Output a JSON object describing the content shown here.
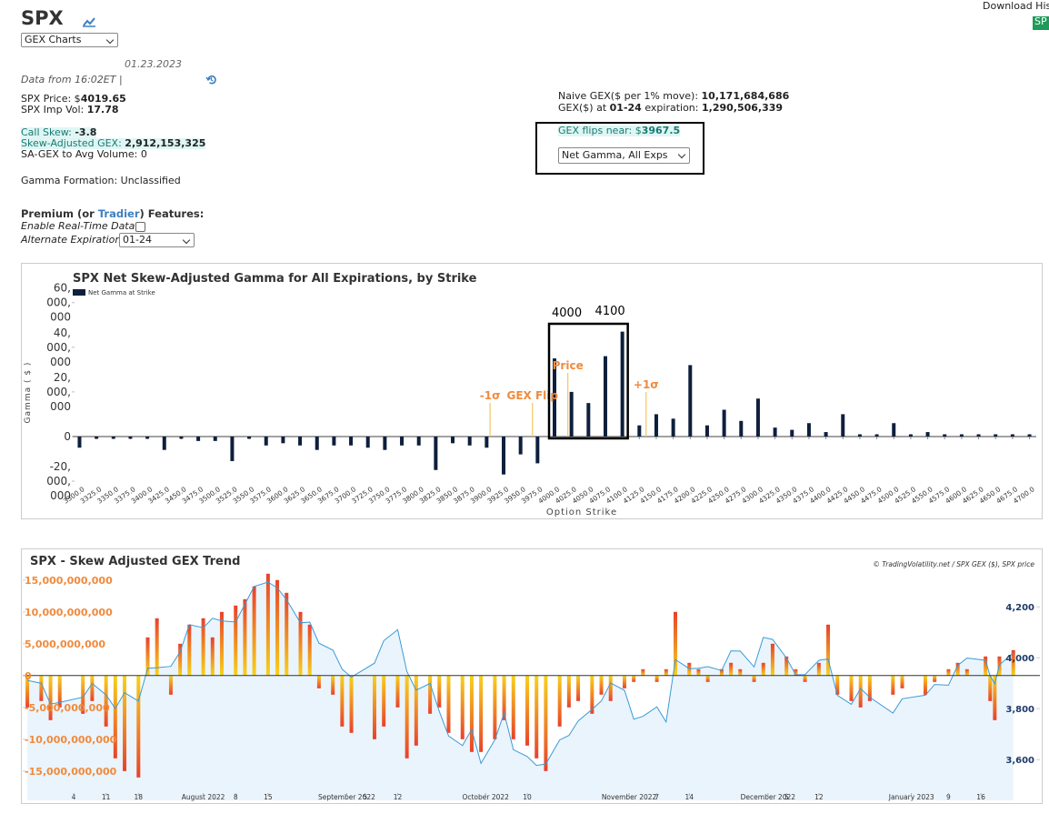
{
  "header": {
    "symbol": "SPX",
    "chart_select": "GEX Charts",
    "date": "01.23.2023",
    "data_from": "Data from 16:02ET |",
    "download": "Download Histo",
    "download_button": "SP"
  },
  "stats": {
    "price_label": "SPX Price: $",
    "price": "4019.65",
    "iv_label": "SPX Imp Vol: ",
    "iv": "17.78",
    "call_skew_label": "Call Skew: ",
    "call_skew": "-3.8",
    "sagex_label": "Skew-Adjusted GEX: ",
    "sagex": "2,912,153,325",
    "sagex_vol": "SA-GEX to Avg Volume: 0",
    "formation": "Gamma Formation: Unclassified",
    "naive_label": "Naive GEX($ per 1% move): ",
    "naive": "10,171,684,686",
    "exp_label_1": "GEX($) at ",
    "exp_date": "01-24",
    "exp_label_2": " expiration: ",
    "exp_gex": "1,290,506,339",
    "flip_label": "GEX flips near: $",
    "flip": "3967.5",
    "gamma_select": "Net Gamma, All Exps"
  },
  "premium": {
    "title_1": "Premium (or ",
    "link": "Tradier",
    "title_2": ") Features:",
    "realtime": "Enable Real-Time Data",
    "alt_exp": "Alternate Expiration",
    "alt_exp_select": "01-24"
  },
  "chart_data": [
    {
      "type": "bar",
      "title": "SPX Net Skew-Adjusted Gamma for All Expirations, by Strike",
      "xlabel": "Option Strike",
      "ylabel": "Gamma ( $ )",
      "x": [
        3300,
        3325,
        3350,
        3375,
        3400,
        3425,
        3450,
        3475,
        3500,
        3525,
        3550,
        3575,
        3600,
        3625,
        3650,
        3675,
        3700,
        3725,
        3750,
        3775,
        3800,
        3825,
        3850,
        3875,
        3900,
        3925,
        3950,
        3975,
        4000,
        4025,
        4050,
        4075,
        4100,
        4125,
        4150,
        4175,
        4200,
        4225,
        4250,
        4275,
        4300,
        4325,
        4350,
        4375,
        4400,
        4425,
        4450,
        4475,
        4500,
        4525,
        4550,
        4575,
        4600,
        4625,
        4650,
        4675,
        4700
      ],
      "series": [
        {
          "name": "Net Gamma at Strike",
          "color": "#0e1f3d",
          "values": [
            -5000000.0,
            -1000000.0,
            -1000000.0,
            -1000000.0,
            -1000000.0,
            -6000000.0,
            -1000000.0,
            -2000000.0,
            -2000000.0,
            -11000000.0,
            -1000000.0,
            -4000000.0,
            -3000000.0,
            -4000000.0,
            -6000000.0,
            -4000000.0,
            -4000000.0,
            -5000000.0,
            -6000000.0,
            -4000000.0,
            -4000000.0,
            -15000000.0,
            -3000000.0,
            -4000000.0,
            -5000000.0,
            -17000000.0,
            -8000000.0,
            -12000000.0,
            35000000.0,
            20000000.0,
            15000000.0,
            36000000.0,
            47000000.0,
            5000000.0,
            10000000.0,
            8000000.0,
            32000000.0,
            5000000.0,
            12000000.0,
            7000000.0,
            17000000.0,
            4000000.0,
            3000000.0,
            6000000.0,
            2000000.0,
            10000000.0,
            1000000.0,
            1000000.0,
            6000000.0,
            1000000.0,
            2000000.0,
            1000000.0,
            1000000.0,
            1000000.0,
            1000000.0,
            1000000.0,
            1000000.0
          ]
        }
      ],
      "xlim": [
        3290,
        4710
      ],
      "ylim": [
        -26500000,
        66000000
      ],
      "xticks": [
        {
          "value": 3300,
          "label": "3300.0"
        },
        {
          "value": 3325,
          "label": "3325.0"
        },
        {
          "value": 3350,
          "label": "3350.0"
        },
        {
          "value": 3375,
          "label": "3375.0"
        },
        {
          "value": 3400,
          "label": "3400.0"
        },
        {
          "value": 3425,
          "label": "3425.0"
        },
        {
          "value": 3450,
          "label": "3450.0"
        },
        {
          "value": 3475,
          "label": "3475.0"
        },
        {
          "value": 3500,
          "label": "3500.0"
        },
        {
          "value": 3525,
          "label": "3525.0"
        },
        {
          "value": 3550,
          "label": "3550.0"
        },
        {
          "value": 3575,
          "label": "3575.0"
        },
        {
          "value": 3600,
          "label": "3600.0"
        },
        {
          "value": 3625,
          "label": "3625.0"
        },
        {
          "value": 3650,
          "label": "3650.0"
        },
        {
          "value": 3675,
          "label": "3675.0"
        },
        {
          "value": 3700,
          "label": "3700.0"
        },
        {
          "value": 3725,
          "label": "3725.0"
        },
        {
          "value": 3750,
          "label": "3750.0"
        },
        {
          "value": 3775,
          "label": "3775.0"
        },
        {
          "value": 3800,
          "label": "3800.0"
        },
        {
          "value": 3825,
          "label": "3825.0"
        },
        {
          "value": 3850,
          "label": "3850.0"
        },
        {
          "value": 3875,
          "label": "3875.0"
        },
        {
          "value": 3900,
          "label": "3900.0"
        },
        {
          "value": 3925,
          "label": "3925.0"
        },
        {
          "value": 3950,
          "label": "3950.0"
        },
        {
          "value": 3975,
          "label": "3975.0"
        },
        {
          "value": 4000,
          "label": "4000.0"
        },
        {
          "value": 4025,
          "label": "4025.0"
        },
        {
          "value": 4050,
          "label": "4050.0"
        },
        {
          "value": 4075,
          "label": "4075.0"
        },
        {
          "value": 4100,
          "label": "4100.0"
        },
        {
          "value": 4125,
          "label": "4125.0"
        },
        {
          "value": 4150,
          "label": "4150.0"
        },
        {
          "value": 4175,
          "label": "4175.0"
        },
        {
          "value": 4200,
          "label": "4200.0"
        },
        {
          "value": 4225,
          "label": "4225.0"
        },
        {
          "value": 4250,
          "label": "4250.0"
        },
        {
          "value": 4275,
          "label": "4275.0"
        },
        {
          "value": 4300,
          "label": "4300.0"
        },
        {
          "value": 4325,
          "label": "4325.0"
        },
        {
          "value": 4350,
          "label": "4350.0"
        },
        {
          "value": 4375,
          "label": "4375.0"
        },
        {
          "value": 4400,
          "label": "4400.0"
        },
        {
          "value": 4425,
          "label": "4425.0"
        },
        {
          "value": 4450,
          "label": "4450.0"
        },
        {
          "value": 4475,
          "label": "4475.0"
        },
        {
          "value": 4500,
          "label": "4500.0"
        },
        {
          "value": 4525,
          "label": "4525.0"
        },
        {
          "value": 4550,
          "label": "4550.0"
        },
        {
          "value": 4575,
          "label": "4575.0"
        },
        {
          "value": 4600,
          "label": "4600.0"
        },
        {
          "value": 4625,
          "label": "4625.0"
        },
        {
          "value": 4650,
          "label": "4650.0"
        },
        {
          "value": 4675,
          "label": "4675.0"
        },
        {
          "value": 4700,
          "label": "4700.0"
        }
      ],
      "yticks": [
        {
          "value": -20000000,
          "label": "-20,000,000"
        },
        0,
        {
          "value": 20000000,
          "label": "20,000,000"
        },
        {
          "value": 40000000,
          "label": "40,000,000"
        },
        {
          "value": 60000000,
          "label": "60,000,000"
        }
      ],
      "annotations": [
        {
          "label": "-1σ",
          "x": 3905
        },
        {
          "label": "GEX Flip",
          "x": 3967.5
        },
        {
          "label": "Price",
          "x": 4019.65
        },
        {
          "label": "+1σ",
          "x": 4135
        }
      ],
      "annotation_color": "#f08a3c",
      "highlight": {
        "from": 4000,
        "to": 4100
      }
    },
    {
      "type": "bar",
      "title": "SPX - Skew Adjusted GEX Trend",
      "credit": "© TradingVolatility.net / SPX GEX ($), SPX price",
      "x": [
        "2022-06-24",
        "2022-06-27",
        "2022-06-29",
        "2022-07-01",
        "2022-07-06",
        "2022-07-08",
        "2022-07-11",
        "2022-07-13",
        "2022-07-15",
        "2022-07-18",
        "2022-07-20",
        "2022-07-22",
        "2022-07-25",
        "2022-07-27",
        "2022-07-29",
        "2022-08-01",
        "2022-08-03",
        "2022-08-05",
        "2022-08-08",
        "2022-08-10",
        "2022-08-12",
        "2022-08-15",
        "2022-08-17",
        "2022-08-19",
        "2022-08-22",
        "2022-08-24",
        "2022-08-26",
        "2022-08-29",
        "2022-08-31",
        "2022-09-02",
        "2022-09-07",
        "2022-09-09",
        "2022-09-12",
        "2022-09-14",
        "2022-09-16",
        "2022-09-19",
        "2022-09-21",
        "2022-09-23",
        "2022-09-26",
        "2022-09-28",
        "2022-09-30",
        "2022-10-03",
        "2022-10-05",
        "2022-10-07",
        "2022-10-10",
        "2022-10-12",
        "2022-10-14",
        "2022-10-17",
        "2022-10-19",
        "2022-10-21",
        "2022-10-24",
        "2022-10-26",
        "2022-10-28",
        "2022-10-31",
        "2022-11-02",
        "2022-11-04",
        "2022-11-07",
        "2022-11-09",
        "2022-11-11",
        "2022-11-14",
        "2022-11-16",
        "2022-11-18",
        "2022-11-21",
        "2022-11-23",
        "2022-11-25",
        "2022-11-28",
        "2022-11-30",
        "2022-12-02",
        "2022-12-05",
        "2022-12-07",
        "2022-12-09",
        "2022-12-12",
        "2022-12-14",
        "2022-12-16",
        "2022-12-19",
        "2022-12-21",
        "2022-12-23",
        "2022-12-28",
        "2022-12-30",
        "2023-01-04",
        "2023-01-06",
        "2023-01-09",
        "2023-01-11",
        "2023-01-13",
        "2023-01-17",
        "2023-01-18",
        "2023-01-19",
        "2023-01-20",
        "2023-01-23"
      ],
      "series": [
        {
          "color": "#e8412c",
          "gradient_color": "#f7d21c",
          "values": [
            -5000000000.0,
            -4000000000.0,
            -7000000000.0,
            -5000000000.0,
            -6000000000.0,
            -4000000000.0,
            -8000000000.0,
            -13000000000.0,
            -15000000000.0,
            -16000000000.0,
            6000000000.0,
            9000000000.0,
            -3000000000.0,
            5000000000.0,
            8000000000.0,
            9000000000.0,
            6000000000.0,
            10000000000.0,
            11000000000.0,
            12000000000.0,
            14000000000.0,
            16000000000.0,
            15000000000.0,
            13000000000.0,
            10000000000.0,
            8000000000.0,
            -2000000000.0,
            -3000000000.0,
            -8000000000.0,
            -9000000000.0,
            -10000000000.0,
            -8000000000.0,
            -5000000000.0,
            -13000000000.0,
            -11000000000.0,
            -6000000000.0,
            -5000000000.0,
            -9000000000.0,
            -10000000000.0,
            -12000000000.0,
            -12000000000.0,
            -10000000000.0,
            -7000000000.0,
            -10000000000.0,
            -11000000000.0,
            -13000000000.0,
            -15000000000.0,
            -8000000000.0,
            -5000000000.0,
            -4000000000.0,
            -6000000000.0,
            -3000000000.0,
            -4000000000.0,
            -2000000000.0,
            -1000000000.0,
            1000000000.0,
            -1000000000.0,
            1000000000.0,
            10000000000.0,
            2000000000.0,
            1000000000.0,
            -1000000000.0,
            1000000000.0,
            2000000000.0,
            1000000000.0,
            -1000000000.0,
            2000000000.0,
            5000000000.0,
            3000000000.0,
            1000000000.0,
            -1000000000.0,
            2000000000.0,
            8000000000.0,
            -3000000000.0,
            -4000000000.0,
            -5000000000.0,
            -4000000000.0,
            -3000000000.0,
            -2000000000.0,
            -3000000000.0,
            -1000000000.0,
            1000000000.0,
            2000000000.0,
            1000000000.0,
            3000000000.0,
            -4000000000.0,
            -7000000000.0,
            3000000000.0,
            4000000000.0
          ]
        },
        {
          "type": "line",
          "axis": "y2",
          "color": "#3d9ad6",
          "fill": "#eaf4fc",
          "values": [
            3911,
            3900,
            3818,
            3825,
            3845,
            3899,
            3854,
            3801,
            3863,
            3830,
            3959,
            3961,
            3966,
            4023,
            4130,
            4118,
            4155,
            4145,
            4140,
            4210,
            4280,
            4297,
            4274,
            4228,
            4137,
            4140,
            4057,
            4030,
            3955,
            3924,
            3979,
            4067,
            4110,
            3946,
            3873,
            3899,
            3789,
            3693,
            3655,
            3719,
            3585,
            3678,
            3783,
            3639,
            3612,
            3577,
            3583,
            3677,
            3695,
            3752,
            3797,
            3830,
            3901,
            3872,
            3759,
            3770,
            3807,
            3748,
            3993,
            3957,
            3959,
            3965,
            3950,
            4027,
            4026,
            3964,
            4080,
            4072,
            3999,
            3933,
            3934,
            3990,
            3995,
            3852,
            3817,
            3879,
            3845,
            3783,
            3839,
            3853,
            3895,
            3892,
            3970,
            3999,
            3990,
            3928,
            3898,
            3972,
            4019
          ]
        }
      ],
      "xlim": [
        "2022-06-23",
        "2023-01-26"
      ],
      "ylim": [
        -19600000000,
        16400000000
      ],
      "y2lim": [
        3440,
        4340
      ],
      "xticks": [
        {
          "value": "2022-07-04",
          "label": "4"
        },
        {
          "value": "2022-07-11",
          "label": "11"
        },
        {
          "value": "2022-07-18",
          "label": "18"
        },
        {
          "value": "2022-08-01",
          "label": "August 2022"
        },
        {
          "value": "2022-08-08",
          "label": "8"
        },
        {
          "value": "2022-08-15",
          "label": "15"
        },
        {
          "value": "2022-09-01",
          "label": "September 2022"
        },
        {
          "value": "2022-09-05",
          "label": "5"
        },
        {
          "value": "2022-09-12",
          "label": "12"
        },
        {
          "value": "2022-10-01",
          "label": "October 2022"
        },
        {
          "value": "2022-10-10",
          "label": "10"
        },
        {
          "value": "2022-11-01",
          "label": "November 2022"
        },
        {
          "value": "2022-11-07",
          "label": "7"
        },
        {
          "value": "2022-11-14",
          "label": "14"
        },
        {
          "value": "2022-12-01",
          "label": "December 2022"
        },
        {
          "value": "2022-12-05",
          "label": "5"
        },
        {
          "value": "2022-12-12",
          "label": "12"
        },
        {
          "value": "2023-01-01",
          "label": "January 2023"
        },
        {
          "value": "2023-01-09",
          "label": "9"
        },
        {
          "value": "2023-01-16",
          "label": "16"
        }
      ],
      "yticks": [
        {
          "value": -15000000000,
          "label": "-15,000,000,000"
        },
        {
          "value": -10000000000,
          "label": "-10,000,000,000"
        },
        {
          "value": -5000000000,
          "label": "-5,000,000,000"
        },
        0,
        {
          "value": 5000000000,
          "label": "5,000,000,000"
        },
        {
          "value": 10000000000,
          "label": "10,000,000,000"
        },
        {
          "value": 15000000000,
          "label": "15,000,000,000"
        }
      ],
      "y2ticks": [
        {
          "value": 3600,
          "label": "3,600"
        },
        {
          "value": 3800,
          "label": "3,800"
        },
        {
          "value": 4000,
          "label": "4,000"
        },
        {
          "value": 4200,
          "label": "4,200"
        }
      ],
      "ytick_color": "#f08a3c",
      "y2tick_color": "#1f3a6b"
    }
  ]
}
